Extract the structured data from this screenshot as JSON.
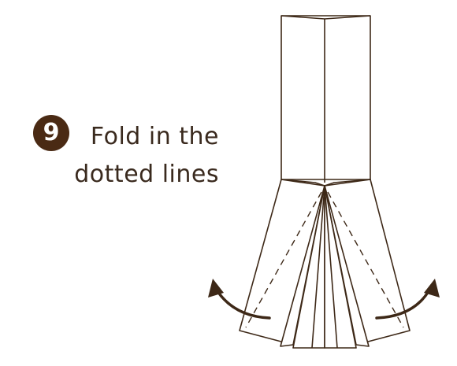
{
  "step": {
    "number": "9",
    "instruction_lines": [
      "Fold in the",
      "dotted lines"
    ]
  },
  "colors": {
    "badge_fill": "#4a2a14",
    "text": "#3a2a1e",
    "paper_stroke": "#3d2817",
    "arrow": "#3d2817",
    "background": "#ffffff"
  },
  "diagram": {
    "dotted_fold_lines": 2,
    "arrows": [
      "left-outward-arrow",
      "right-outward-arrow"
    ]
  }
}
